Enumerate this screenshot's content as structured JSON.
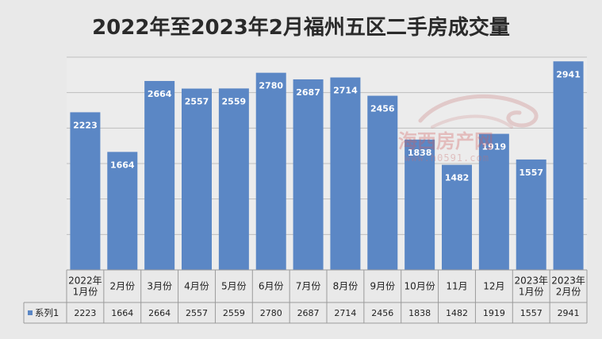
{
  "chart_data": {
    "type": "bar",
    "title": "2022年至2023年2月福州五区二手房成交量",
    "categories": [
      [
        "2022年",
        "1月份"
      ],
      [
        "2月份"
      ],
      [
        "3月份"
      ],
      [
        "4月份"
      ],
      [
        "5月份"
      ],
      [
        "6月份"
      ],
      [
        "7月份"
      ],
      [
        "8月份"
      ],
      [
        "9月份"
      ],
      [
        "10月份"
      ],
      [
        "11月"
      ],
      [
        "12月"
      ],
      [
        "2023年",
        "1月份"
      ],
      [
        "2023年",
        "2月份"
      ]
    ],
    "series": [
      {
        "name": "系列1",
        "values": [
          2223,
          1664,
          2664,
          2557,
          2559,
          2780,
          2687,
          2714,
          2456,
          1838,
          1482,
          1919,
          1557,
          2941
        ],
        "color": "#5b87c5"
      }
    ],
    "ylim": [
      0,
      3000
    ],
    "grid": true,
    "data_labels": true,
    "data_table": true
  },
  "watermark": {
    "text": "海西房产网",
    "url": "www.h0591.com"
  },
  "colors": {
    "bar": "#5b87c5",
    "plot_bg": "#ececec",
    "grid": "#bfbfbf"
  }
}
